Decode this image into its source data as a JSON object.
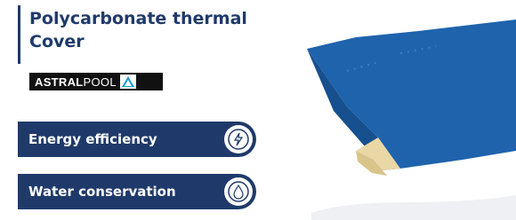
{
  "header": {
    "title": "Polycarbonate thermal Cover"
  },
  "logo": {
    "brand_bold": "ASTRAL",
    "brand_light": "POOL"
  },
  "badges": [
    {
      "label": "Energy efficiency"
    },
    {
      "label": "Water conservation"
    }
  ]
}
